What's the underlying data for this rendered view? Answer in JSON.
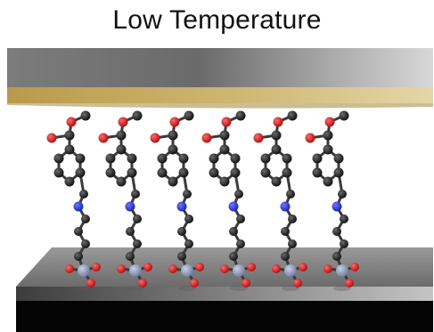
{
  "title": "Low Temperature",
  "molecule_count": 6,
  "colors": {
    "carbon": "#1c1c1c",
    "oxygen": "#c62020",
    "nitrogen": "#2230c0",
    "silicon": "#8d98b8",
    "gold_layer": "#c9b06a",
    "top_electrode": "#8a8a8a",
    "substrate_top": "#7a7a7a",
    "substrate_base": "#050505"
  }
}
